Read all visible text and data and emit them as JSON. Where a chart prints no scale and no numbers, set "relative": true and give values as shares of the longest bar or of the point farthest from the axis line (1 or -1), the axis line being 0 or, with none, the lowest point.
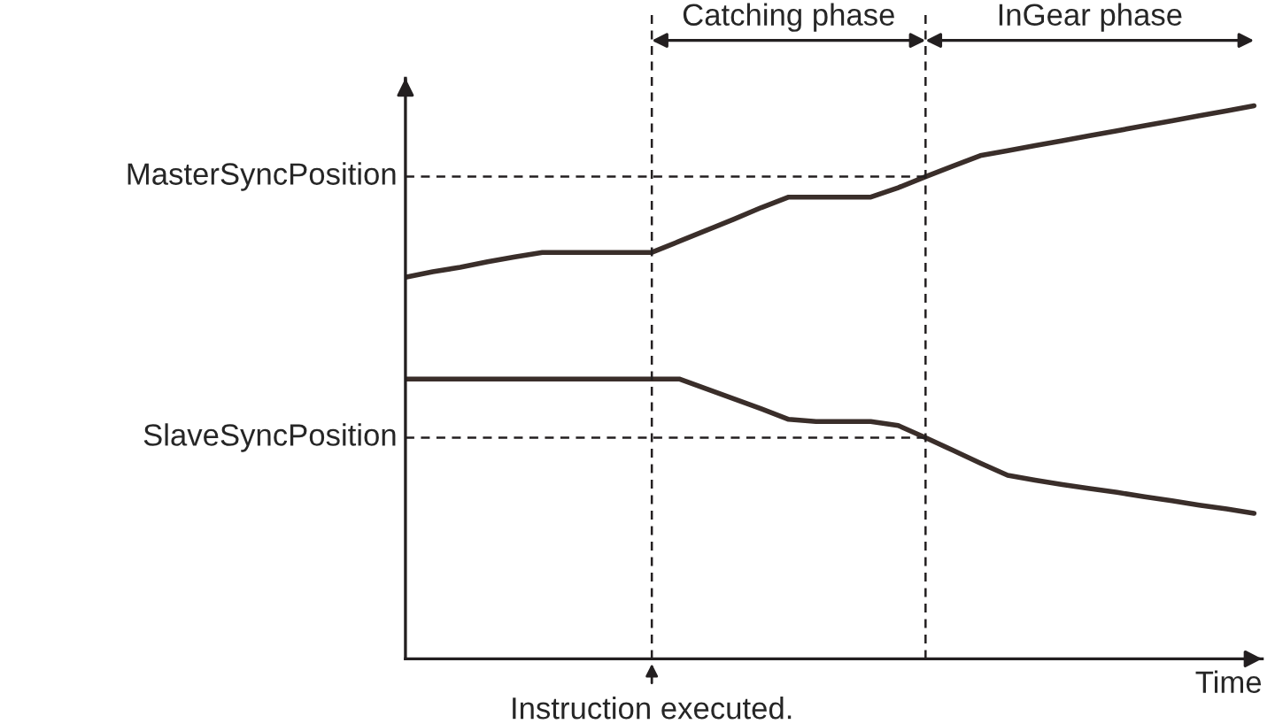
{
  "chart_data": {
    "type": "line",
    "relative": true,
    "xlabel": "Time",
    "categories": [
      null,
      null,
      null,
      null,
      null,
      null,
      null,
      null,
      null,
      null,
      null,
      null,
      null,
      null,
      null,
      null,
      null,
      null,
      null,
      null,
      null,
      null,
      null,
      null,
      null,
      null,
      null,
      null,
      null,
      null,
      null,
      null
    ],
    "series": [
      {
        "color": "#3a2e2a",
        "values": [
          0.69,
          0.7,
          0.708,
          0.718,
          0.727,
          0.735,
          0.735,
          0.735,
          0.735,
          0.735,
          0.755,
          0.775,
          0.795,
          0.816,
          0.835,
          0.835,
          0.835,
          0.835,
          0.852,
          0.872,
          0.891,
          0.91,
          0.919,
          0.928,
          0.937,
          0.946,
          0.955,
          0.964,
          0.973,
          0.982,
          0.991,
          1
        ]
      },
      {
        "color": "#3a2e2a",
        "values": [
          0.506,
          0.506,
          0.506,
          0.506,
          0.506,
          0.506,
          0.506,
          0.506,
          0.506,
          0.506,
          0.506,
          0.488,
          0.47,
          0.452,
          0.433,
          0.429,
          0.429,
          0.429,
          0.422,
          0.4,
          0.377,
          0.354,
          0.332,
          0.323,
          0.315,
          0.308,
          0.301,
          0.293,
          0.286,
          0.278,
          0.271,
          0.263
        ]
      }
    ],
    "ref_lines": [
      {
        "axis": "y",
        "value": 0.872,
        "label": "MasterSyncPosition",
        "line_style": "dashed"
      },
      {
        "axis": "y",
        "value": 0.4,
        "label": "SlaveSyncPosition",
        "line_style": "dashed"
      }
    ],
    "annotations": [
      "Instruction executed.",
      "Catching phase",
      "InGear phase"
    ]
  }
}
